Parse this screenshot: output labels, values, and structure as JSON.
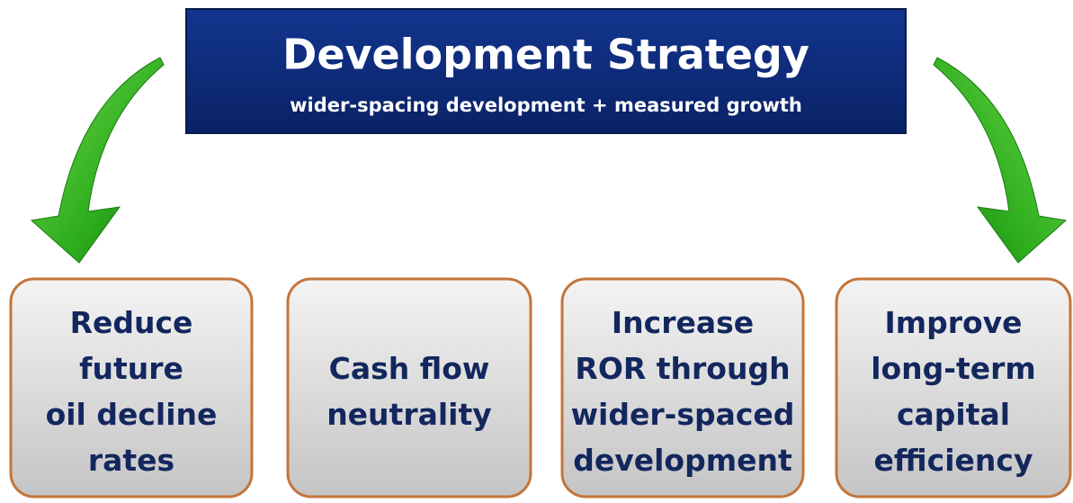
{
  "header": {
    "title": "Development Strategy",
    "subtitle": "wider-spacing development + measured growth"
  },
  "boxes": [
    {
      "lines": [
        "Reduce",
        "future",
        "oil decline",
        "rates"
      ]
    },
    {
      "lines": [
        "Cash flow",
        "neutrality"
      ]
    },
    {
      "lines": [
        "Increase",
        "ROR through",
        "wider-spaced",
        "development"
      ]
    },
    {
      "lines": [
        "Improve",
        "long-term",
        "capital",
        "efficiency"
      ]
    }
  ]
}
